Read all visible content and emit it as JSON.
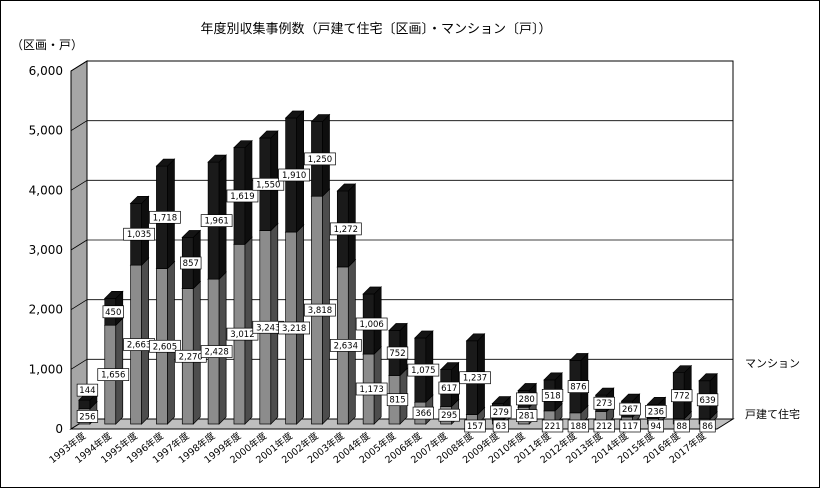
{
  "chart_data": {
    "type": "bar",
    "stacked": true,
    "three_d": true,
    "title": "年度別収集事例数（戸建て住宅〔区画〕・マンション〔戸〕）",
    "unit_label": "（区画・戸）",
    "ylim": [
      0,
      6000
    ],
    "ytick_labels": [
      "0",
      "1,000",
      "2,000",
      "3,000",
      "4,000",
      "5,000",
      "6,000"
    ],
    "grid": true,
    "legend_placement": "right",
    "categories": [
      "1993年度",
      "1994年度",
      "1995年度",
      "1996年度",
      "1997年度",
      "1998年度",
      "1999年度",
      "2000年度",
      "2001年度",
      "2002年度",
      "2003年度",
      "2004年度",
      "2005年度",
      "2006年度",
      "2007年度",
      "2008年度",
      "2009年度",
      "2010年度",
      "2011年度",
      "2012年度",
      "2013年度",
      "2014年度",
      "2015年度",
      "2016年度",
      "2017年度"
    ],
    "series": [
      {
        "name": "戸建て住宅",
        "color": "#8c8c8c",
        "values": [
          256,
          1656,
          2663,
          2605,
          2270,
          2428,
          3012,
          3243,
          3218,
          3818,
          2634,
          1173,
          815,
          366,
          295,
          157,
          63,
          281,
          221,
          188,
          212,
          117,
          94,
          88,
          86
        ],
        "labels": [
          "256",
          "1,656",
          "2,663",
          "2,605",
          "2,270",
          "2,428",
          "3,012",
          "3,243",
          "3,218",
          "3,818",
          "2,634",
          "1,173",
          "815",
          "366",
          "295",
          "157",
          "63",
          "281",
          "221",
          "188",
          "212",
          "117",
          "94",
          "88",
          "86"
        ]
      },
      {
        "name": "マンション",
        "color": "#1a1a1a",
        "values": [
          144,
          450,
          1035,
          1718,
          857,
          1961,
          1619,
          1550,
          1910,
          1250,
          1272,
          1006,
          752,
          1075,
          617,
          1237,
          279,
          280,
          518,
          876,
          273,
          267,
          236,
          772,
          639
        ],
        "labels": [
          "144",
          "450",
          "1,035",
          "1,718",
          "857",
          "1,961",
          "1,619",
          "1,550",
          "1,910",
          "1,250",
          "1,272",
          "1,006",
          "752",
          "1,075",
          "617",
          "1,237",
          "279",
          "280",
          "518",
          "876",
          "273",
          "267",
          "236",
          "772",
          "639"
        ]
      }
    ]
  }
}
